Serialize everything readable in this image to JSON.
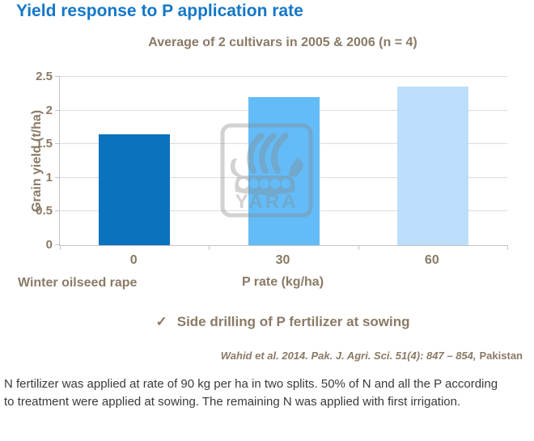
{
  "page": {
    "title": "Yield response to P application rate",
    "footnote": "N fertilizer was applied at rate of 90 kg per ha in two splits. 50% of N and all the P according to treatment were applied at sowing. The remaining N was applied with first irrigation."
  },
  "chart_data": {
    "type": "bar",
    "title": "Average of 2 cultivars in 2005 & 2006 (n = 4)",
    "categories": [
      "0",
      "30",
      "60"
    ],
    "values": [
      1.65,
      2.2,
      2.35
    ],
    "bar_colors": [
      "#0b72bd",
      "#63bcf8",
      "#bddefa"
    ],
    "xlabel": "P rate (kg/ha)",
    "ylabel": "Grain yield (t/ha)",
    "series_note": "Winter oilseed rape",
    "ylim": [
      0,
      2.5
    ],
    "yticks": [
      0,
      0.5,
      1,
      1.5,
      2,
      2.5
    ],
    "grid": true,
    "legend": "none"
  },
  "annotations": {
    "check_icon": "✓",
    "check_text": "Side drilling of P fertilizer at sowing",
    "source_italic": "Wahid et al. 2014. Pak. J. Agri. Sci. 51(4): 847 – 854,",
    "source_plain": "Pakistan"
  },
  "watermark": {
    "label": "YARA",
    "icon": "viking-ship-icon"
  },
  "colors": {
    "title_blue": "#1577c8",
    "chart_text_brown": "#8a7a66",
    "axis_line": "#c3c3c3",
    "gridline": "#dcdcdc",
    "footnote_text": "#3a3a3a",
    "watermark_gray": "#8a8a8a"
  }
}
